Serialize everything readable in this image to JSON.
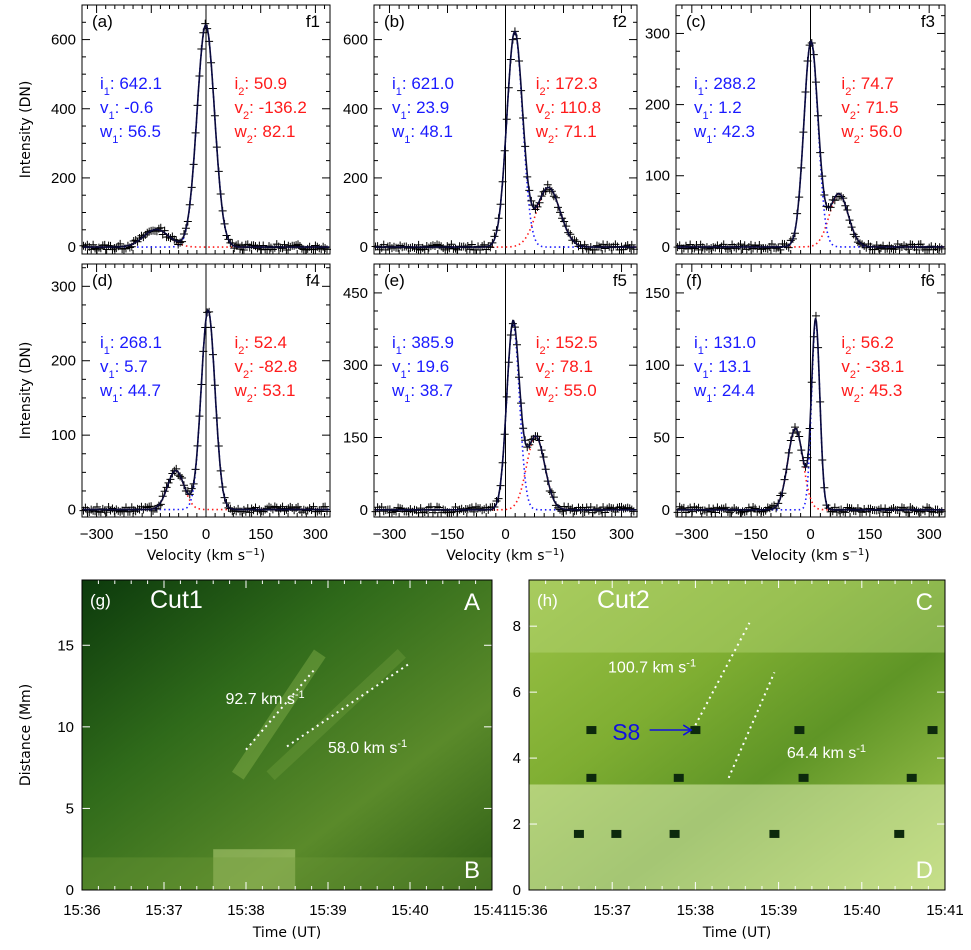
{
  "figure": {
    "background": "#ffffff",
    "fit_color": "#000000",
    "comp1_color": "#1a1aff",
    "comp2_color": "#ff1a1a",
    "data_color": "#000000"
  },
  "chart_data": [
    {
      "type": "line",
      "panel": "(a)",
      "label": "f1",
      "xlim": [
        -340,
        340
      ],
      "xticks": [
        "-300",
        "-150",
        "0",
        "150",
        "300"
      ],
      "ylim": [
        -20,
        700
      ],
      "yticks": [
        "0",
        "200",
        "400",
        "600"
      ],
      "ylabel": "Intensity (DN)",
      "xlabel": "",
      "params": {
        "i1": "642.1",
        "v1": "-0.6",
        "w1": "56.5",
        "i2": "50.9",
        "v2": "-136.2",
        "w2": "82.1"
      },
      "series": [
        {
          "name": "i1 v1 w1",
          "values": [
            642.1,
            -0.6,
            56.5
          ]
        },
        {
          "name": "i2 v2 w2",
          "values": [
            50.9,
            -136.2,
            82.1
          ]
        }
      ]
    },
    {
      "type": "line",
      "panel": "(b)",
      "label": "f2",
      "xlim": [
        -340,
        340
      ],
      "xticks": [
        "-300",
        "-150",
        "0",
        "150",
        "300"
      ],
      "ylim": [
        -20,
        700
      ],
      "yticks": [
        "0",
        "200",
        "400",
        "600"
      ],
      "ylabel": "",
      "xlabel": "",
      "params": {
        "i1": "621.0",
        "v1": "23.9",
        "w1": "48.1",
        "i2": "172.3",
        "v2": "110.8",
        "w2": "71.1"
      },
      "series": [
        {
          "name": "i1 v1 w1",
          "values": [
            621.0,
            23.9,
            48.1
          ]
        },
        {
          "name": "i2 v2 w2",
          "values": [
            172.3,
            110.8,
            71.1
          ]
        }
      ]
    },
    {
      "type": "line",
      "panel": "(c)",
      "label": "f3",
      "xlim": [
        -340,
        340
      ],
      "xticks": [
        "-300",
        "-150",
        "0",
        "150",
        "300"
      ],
      "ylim": [
        -10,
        340
      ],
      "yticks": [
        "0",
        "100",
        "200",
        "300"
      ],
      "ylabel": "",
      "xlabel": "",
      "params": {
        "i1": "288.2",
        "v1": "1.2",
        "w1": "42.3",
        "i2": "74.7",
        "v2": "71.5",
        "w2": "56.0"
      },
      "series": [
        {
          "name": "i1 v1 w1",
          "values": [
            288.2,
            1.2,
            42.3
          ]
        },
        {
          "name": "i2 v2 w2",
          "values": [
            74.7,
            71.5,
            56.0
          ]
        }
      ]
    },
    {
      "type": "line",
      "panel": "(d)",
      "label": "f4",
      "xlim": [
        -340,
        340
      ],
      "xticks": [
        "-300",
        "-150",
        "0",
        "150",
        "300"
      ],
      "ylim": [
        -10,
        330
      ],
      "yticks": [
        "0",
        "100",
        "200",
        "300"
      ],
      "ylabel": "Intensity (DN)",
      "xlabel": "Velocity (km s",
      "params": {
        "i1": "268.1",
        "v1": "5.7",
        "w1": "44.7",
        "i2": "52.4",
        "v2": "-82.8",
        "w2": "53.1"
      },
      "series": [
        {
          "name": "i1 v1 w1",
          "values": [
            268.1,
            5.7,
            44.7
          ]
        },
        {
          "name": "i2 v2 w2",
          "values": [
            52.4,
            -82.8,
            53.1
          ]
        }
      ]
    },
    {
      "type": "line",
      "panel": "(e)",
      "label": "f5",
      "xlim": [
        -340,
        340
      ],
      "xticks": [
        "-300",
        "-150",
        "0",
        "150",
        "300"
      ],
      "ylim": [
        -15,
        510
      ],
      "yticks": [
        "0",
        "150",
        "300",
        "450"
      ],
      "ylabel": "",
      "xlabel": "Velocity (km s",
      "params": {
        "i1": "385.9",
        "v1": "19.6",
        "w1": "38.7",
        "i2": "152.5",
        "v2": "78.1",
        "w2": "55.0"
      },
      "series": [
        {
          "name": "i1 v1 w1",
          "values": [
            385.9,
            19.6,
            38.7
          ]
        },
        {
          "name": "i2 v2 w2",
          "values": [
            152.5,
            78.1,
            55.0
          ]
        }
      ]
    },
    {
      "type": "line",
      "panel": "(f)",
      "label": "f6",
      "xlim": [
        -340,
        340
      ],
      "xticks": [
        "-300",
        "-150",
        "0",
        "150",
        "300"
      ],
      "ylim": [
        -5,
        170
      ],
      "yticks": [
        "0",
        "50",
        "100",
        "150"
      ],
      "ylabel": "",
      "xlabel": "Velocity (km s",
      "params": {
        "i1": "131.0",
        "v1": "13.1",
        "w1": "24.4",
        "i2": "56.2",
        "v2": "-38.1",
        "w2": "45.3"
      },
      "series": [
        {
          "name": "i1 v1 w1",
          "values": [
            131.0,
            13.1,
            24.4
          ]
        },
        {
          "name": "i2 v2 w2",
          "values": [
            56.2,
            -38.1,
            45.3
          ]
        }
      ]
    },
    {
      "type": "heatmap",
      "panel": "(g)",
      "title": "Cut1",
      "corner_top": "A",
      "corner_bottom": "B",
      "xticks": [
        "15:36",
        "15:37",
        "15:38",
        "15:39",
        "15:40",
        "15:41"
      ],
      "xlabel": "Time (UT)",
      "ylim": [
        0,
        19
      ],
      "yticks": [
        "0",
        "5",
        "10",
        "15"
      ],
      "ylabel": "Distance (Mm)",
      "annotations": [
        "92.7 km s",
        "58.0 km s"
      ],
      "lines": [
        {
          "x": [
            38.0,
            38.85
          ],
          "y": [
            8.6,
            13.6
          ]
        },
        {
          "x": [
            38.5,
            40.0
          ],
          "y": [
            8.8,
            13.9
          ]
        }
      ]
    },
    {
      "type": "heatmap",
      "panel": "(h)",
      "title": "Cut2",
      "corner_top": "C",
      "corner_bottom": "D",
      "xticks": [
        "15:36",
        "15:37",
        "15:38",
        "15:39",
        "15:40",
        "15:41"
      ],
      "xlabel": "Time (UT)",
      "ylim": [
        0,
        9.4
      ],
      "yticks": [
        "0",
        "2",
        "4",
        "6",
        "8"
      ],
      "ylabel": "",
      "annotations": [
        "100.7 km s",
        "64.4 km s"
      ],
      "marker": "S8",
      "lines": [
        {
          "x": [
            38.0,
            38.65
          ],
          "y": [
            5.0,
            8.1
          ]
        },
        {
          "x": [
            38.4,
            38.95
          ],
          "y": [
            3.4,
            6.6
          ]
        }
      ]
    }
  ]
}
